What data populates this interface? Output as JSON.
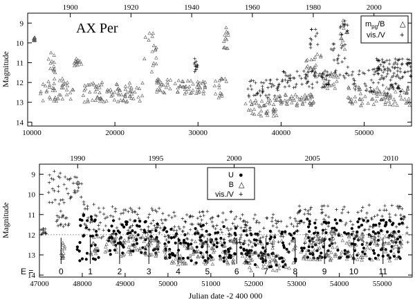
{
  "chart_data": [
    {
      "id": "top",
      "type": "scatter",
      "title": "AX Per",
      "ylabel": "Magnitude",
      "xlim": [
        9500,
        55700
      ],
      "ylim": [
        14.2,
        8.5
      ],
      "x_ticks": [
        10000,
        20000,
        30000,
        40000,
        50000
      ],
      "x_tick_labels": [
        "10000",
        "20000",
        "30000",
        "40000",
        "50000"
      ],
      "top_ticks_jd": [
        14629,
        21934,
        29239,
        36544,
        43874,
        51179
      ],
      "top_tick_labels": [
        "1900",
        "1920",
        "1940",
        "1960",
        "1980",
        "2000"
      ],
      "y_ticks": [
        9,
        10,
        11,
        12,
        13,
        14
      ],
      "y_tick_labels": [
        "9",
        "10",
        "11",
        "12",
        "13",
        "14"
      ],
      "legend": [
        {
          "label_main": "m",
          "label_sub": "pg",
          "label_rest": "/B",
          "marker": "△",
          "series": "mpg/B"
        },
        {
          "label_main": "vis./V",
          "label_sub": "",
          "label_rest": "",
          "marker": "+",
          "series": "vis./V"
        }
      ],
      "series": [
        {
          "name": "mpg/B",
          "marker": "triangle",
          "segments": [
            [
              10200,
              10400,
              9.7,
              9.9
            ],
            [
              11000,
              15000,
              11.8,
              13.0
            ],
            [
              12000,
              13000,
              10.5,
              11.5
            ],
            [
              15000,
              16000,
              10.8,
              11.2
            ],
            [
              16000,
              23500,
              12.0,
              13.0
            ],
            [
              23500,
              25000,
              9.4,
              11.5
            ],
            [
              25000,
              27000,
              11.8,
              12.6
            ],
            [
              27000,
              31000,
              11.9,
              12.6
            ],
            [
              32000,
              33500,
              11.8,
              12.8
            ],
            [
              33000,
              33700,
              9.2,
              10.5
            ],
            [
              35700,
              39500,
              12.8,
              13.7
            ],
            [
              39500,
              44000,
              12.6,
              13.2
            ],
            [
              43000,
              45000,
              10.5,
              11.8
            ],
            [
              45000,
              47000,
              11.5,
              12.4
            ],
            [
              47000,
              48000,
              8.8,
              10.5
            ],
            [
              48000,
              55700,
              12.2,
              13.2
            ]
          ]
        },
        {
          "name": "vis./V",
          "marker": "plus",
          "segments": [
            [
              29500,
              30000,
              10.8,
              11.5
            ],
            [
              36000,
              40000,
              11.8,
              12.8
            ],
            [
              40000,
              46000,
              11.4,
              12.3
            ],
            [
              43500,
              44500,
              9.3,
              10.3
            ],
            [
              46000,
              48000,
              10.0,
              11.8
            ],
            [
              47000,
              48000,
              8.8,
              9.6
            ],
            [
              48000,
              55700,
              11.2,
              12.6
            ],
            [
              51000,
              55700,
              10.8,
              11.5
            ]
          ]
        }
      ]
    },
    {
      "id": "bottom",
      "type": "scatter",
      "xlabel": "Julian date -2 400 000",
      "ylabel": "Magnitude",
      "xlim": [
        47000,
        55700
      ],
      "ylim": [
        14.1,
        8.5
      ],
      "reference_line_y": 12.0,
      "x_ticks": [
        47000,
        48000,
        49000,
        50000,
        51000,
        52000,
        53000,
        54000,
        55000
      ],
      "x_tick_labels": [
        "47000",
        "48000",
        "49000",
        "50000",
        "51000",
        "52000",
        "53000",
        "54000",
        "55000"
      ],
      "top_ticks_jd": [
        47892,
        49718,
        51544,
        53371,
        55197
      ],
      "top_tick_labels": [
        "1990",
        "1995",
        "2000",
        "2005",
        "2010"
      ],
      "y_ticks": [
        9,
        10,
        11,
        12,
        13,
        14
      ],
      "y_tick_labels": [
        "9",
        "10",
        "11",
        "12",
        "13",
        "14"
      ],
      "legend": [
        {
          "label": "U",
          "marker": "●"
        },
        {
          "label": "B",
          "marker": "△"
        },
        {
          "label": "vis./V",
          "marker": "+"
        }
      ],
      "epochs": {
        "prefix": "E = ",
        "labels": [
          "0",
          "1",
          "2",
          "3",
          "4",
          "5",
          "6",
          "7",
          "8",
          "9",
          "10",
          "11"
        ],
        "jd": [
          47505,
          48188,
          48871,
          49554,
          50237,
          50920,
          51603,
          52286,
          52969,
          53652,
          54335,
          55018
        ]
      },
      "series": [
        {
          "name": "U",
          "marker": "dot",
          "segments": [
            [
              47850,
              48400,
              11.0,
              13.3
            ],
            [
              48600,
              49800,
              11.3,
              13.0
            ],
            [
              49900,
              51600,
              11.5,
              13.4
            ],
            [
              51700,
              53000,
              11.8,
              13.6
            ],
            [
              53100,
              55500,
              11.2,
              13.2
            ]
          ]
        },
        {
          "name": "B",
          "marker": "triangle",
          "segments": [
            [
              47500,
              47600,
              12.3,
              13.2
            ],
            [
              48150,
              49800,
              12.0,
              13.1
            ],
            [
              49900,
              51600,
              12.2,
              13.5
            ],
            [
              51700,
              53000,
              12.3,
              13.8
            ],
            [
              53100,
              55500,
              12.0,
              13.3
            ]
          ]
        },
        {
          "name": "vis./V",
          "marker": "plus",
          "segments": [
            [
              47000,
              47200,
              11.6,
              12.0
            ],
            [
              47200,
              47600,
              8.8,
              10.6
            ],
            [
              47400,
              47700,
              10.8,
              11.6
            ],
            [
              47600,
              48000,
              9.1,
              10.3
            ],
            [
              48000,
              48300,
              10.3,
              11.8
            ],
            [
              48300,
              49800,
              10.6,
              12.2
            ],
            [
              49800,
              51600,
              10.8,
              12.3
            ],
            [
              51600,
              53000,
              11.0,
              12.6
            ],
            [
              53000,
              55600,
              10.5,
              12.5
            ]
          ]
        }
      ]
    }
  ]
}
